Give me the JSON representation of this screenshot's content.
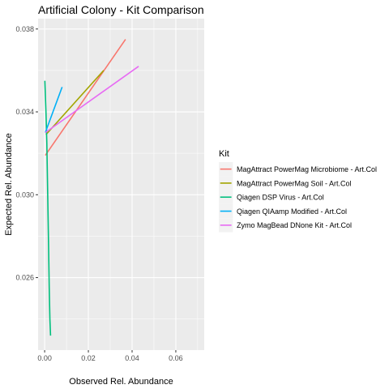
{
  "chart_data": {
    "type": "line",
    "title": "Artificial Colony - Kit Comparison",
    "xlabel": "Observed Rel. Abundance",
    "ylabel": "Expected Rel. Abundance",
    "xlim": [
      -0.003,
      0.073
    ],
    "ylim": [
      0.0225,
      0.0385
    ],
    "x_ticks": [
      0.0,
      0.02,
      0.04,
      0.06
    ],
    "x_tick_labels": [
      "0.00",
      "0.02",
      "0.04",
      "0.06"
    ],
    "y_ticks": [
      0.026,
      0.03,
      0.034,
      0.038
    ],
    "y_tick_labels": [
      "0.026",
      "0.030",
      "0.034",
      "0.038"
    ],
    "grid": true,
    "legend": {
      "title": "Kit",
      "position": "right"
    },
    "series": [
      {
        "name": "MagAttract PowerMag Microbiome - Art.Col",
        "color": "#F8766D",
        "points": [
          [
            0.0003,
            0.0319
          ],
          [
            0.037,
            0.0375
          ]
        ]
      },
      {
        "name": "MagAttract PowerMag Soil - Art.Col",
        "color": "#A3A500",
        "points": [
          [
            0.0006,
            0.0329
          ],
          [
            0.027,
            0.036
          ]
        ]
      },
      {
        "name": "Qiagen DSP Virus - Art.Col",
        "color": "#00BF7D",
        "points": [
          [
            0.0001,
            0.0355
          ],
          [
            0.0006,
            0.034
          ],
          [
            0.001,
            0.0325
          ],
          [
            0.0014,
            0.03
          ],
          [
            0.0018,
            0.0275
          ],
          [
            0.0021,
            0.0255
          ],
          [
            0.0024,
            0.024
          ],
          [
            0.0027,
            0.0232
          ]
        ]
      },
      {
        "name": "Qiagen QIAamp  Modified - Art.Col",
        "color": "#00B0F6",
        "points": [
          [
            0.0003,
            0.033
          ],
          [
            0.008,
            0.0352
          ]
        ]
      },
      {
        "name": "Zymo MagBead DNone Kit - Art.Col",
        "color": "#E76BF3",
        "points": [
          [
            0.0003,
            0.033
          ],
          [
            0.043,
            0.0362
          ]
        ]
      }
    ]
  }
}
